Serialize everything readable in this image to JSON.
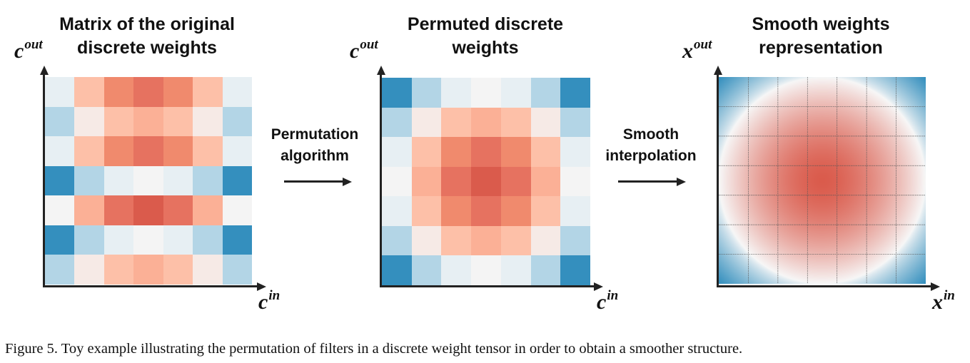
{
  "panels": [
    {
      "title_lines": [
        "Matrix of the original",
        "discrete weights"
      ],
      "y_label": {
        "base": "c",
        "sup": "out"
      },
      "x_label": {
        "base": "c",
        "sup": "in"
      },
      "matrix": [
        [
          "A",
          "B",
          "C",
          "D",
          "C",
          "B",
          "A"
        ],
        [
          "F",
          "G",
          "B",
          "H",
          "B",
          "G",
          "F"
        ],
        [
          "A",
          "B",
          "C",
          "D",
          "C",
          "B",
          "A"
        ],
        [
          "J",
          "F",
          "A",
          "I",
          "A",
          "F",
          "J"
        ],
        [
          "I",
          "H",
          "D",
          "E",
          "D",
          "H",
          "I"
        ],
        [
          "J",
          "F",
          "A",
          "I",
          "A",
          "F",
          "J"
        ],
        [
          "F",
          "G",
          "B",
          "H",
          "B",
          "G",
          "F"
        ]
      ]
    },
    {
      "title_lines": [
        "Permuted discrete",
        "weights"
      ],
      "y_label": {
        "base": "c",
        "sup": "out"
      },
      "x_label": {
        "base": "c",
        "sup": "in"
      },
      "matrix": [
        [
          "J",
          "F",
          "A",
          "I",
          "A",
          "F",
          "J"
        ],
        [
          "F",
          "G",
          "B",
          "H",
          "B",
          "G",
          "F"
        ],
        [
          "A",
          "B",
          "C",
          "D",
          "C",
          "B",
          "A"
        ],
        [
          "I",
          "H",
          "D",
          "E",
          "D",
          "H",
          "I"
        ],
        [
          "A",
          "B",
          "C",
          "D",
          "C",
          "B",
          "A"
        ],
        [
          "F",
          "G",
          "B",
          "H",
          "B",
          "G",
          "F"
        ],
        [
          "J",
          "F",
          "A",
          "I",
          "A",
          "F",
          "J"
        ]
      ]
    },
    {
      "title_lines": [
        "Smooth weights",
        "representation"
      ],
      "y_label": {
        "base": "x",
        "sup": "out"
      },
      "x_label": {
        "base": "x",
        "sup": "in"
      },
      "representation": "continuous radial field, red center, blue corners, 7x7 dotted grid overlay"
    }
  ],
  "palette": {
    "A": "#e7eff3",
    "B": "#fdc0a8",
    "C": "#f08a6d",
    "D": "#e67260",
    "E": "#da5b4c",
    "F": "#b3d5e6",
    "G": "#f6eae6",
    "H": "#fbb096",
    "I": "#f4f4f4",
    "J": "#348fbe"
  },
  "steps": [
    {
      "lines": [
        "Permutation",
        "algorithm"
      ]
    },
    {
      "lines": [
        "Smooth",
        "interpolation"
      ]
    }
  ],
  "caption": "Figure 5. Toy example illustrating the permutation of filters in a discrete weight tensor in order to obtain a smoother structure."
}
